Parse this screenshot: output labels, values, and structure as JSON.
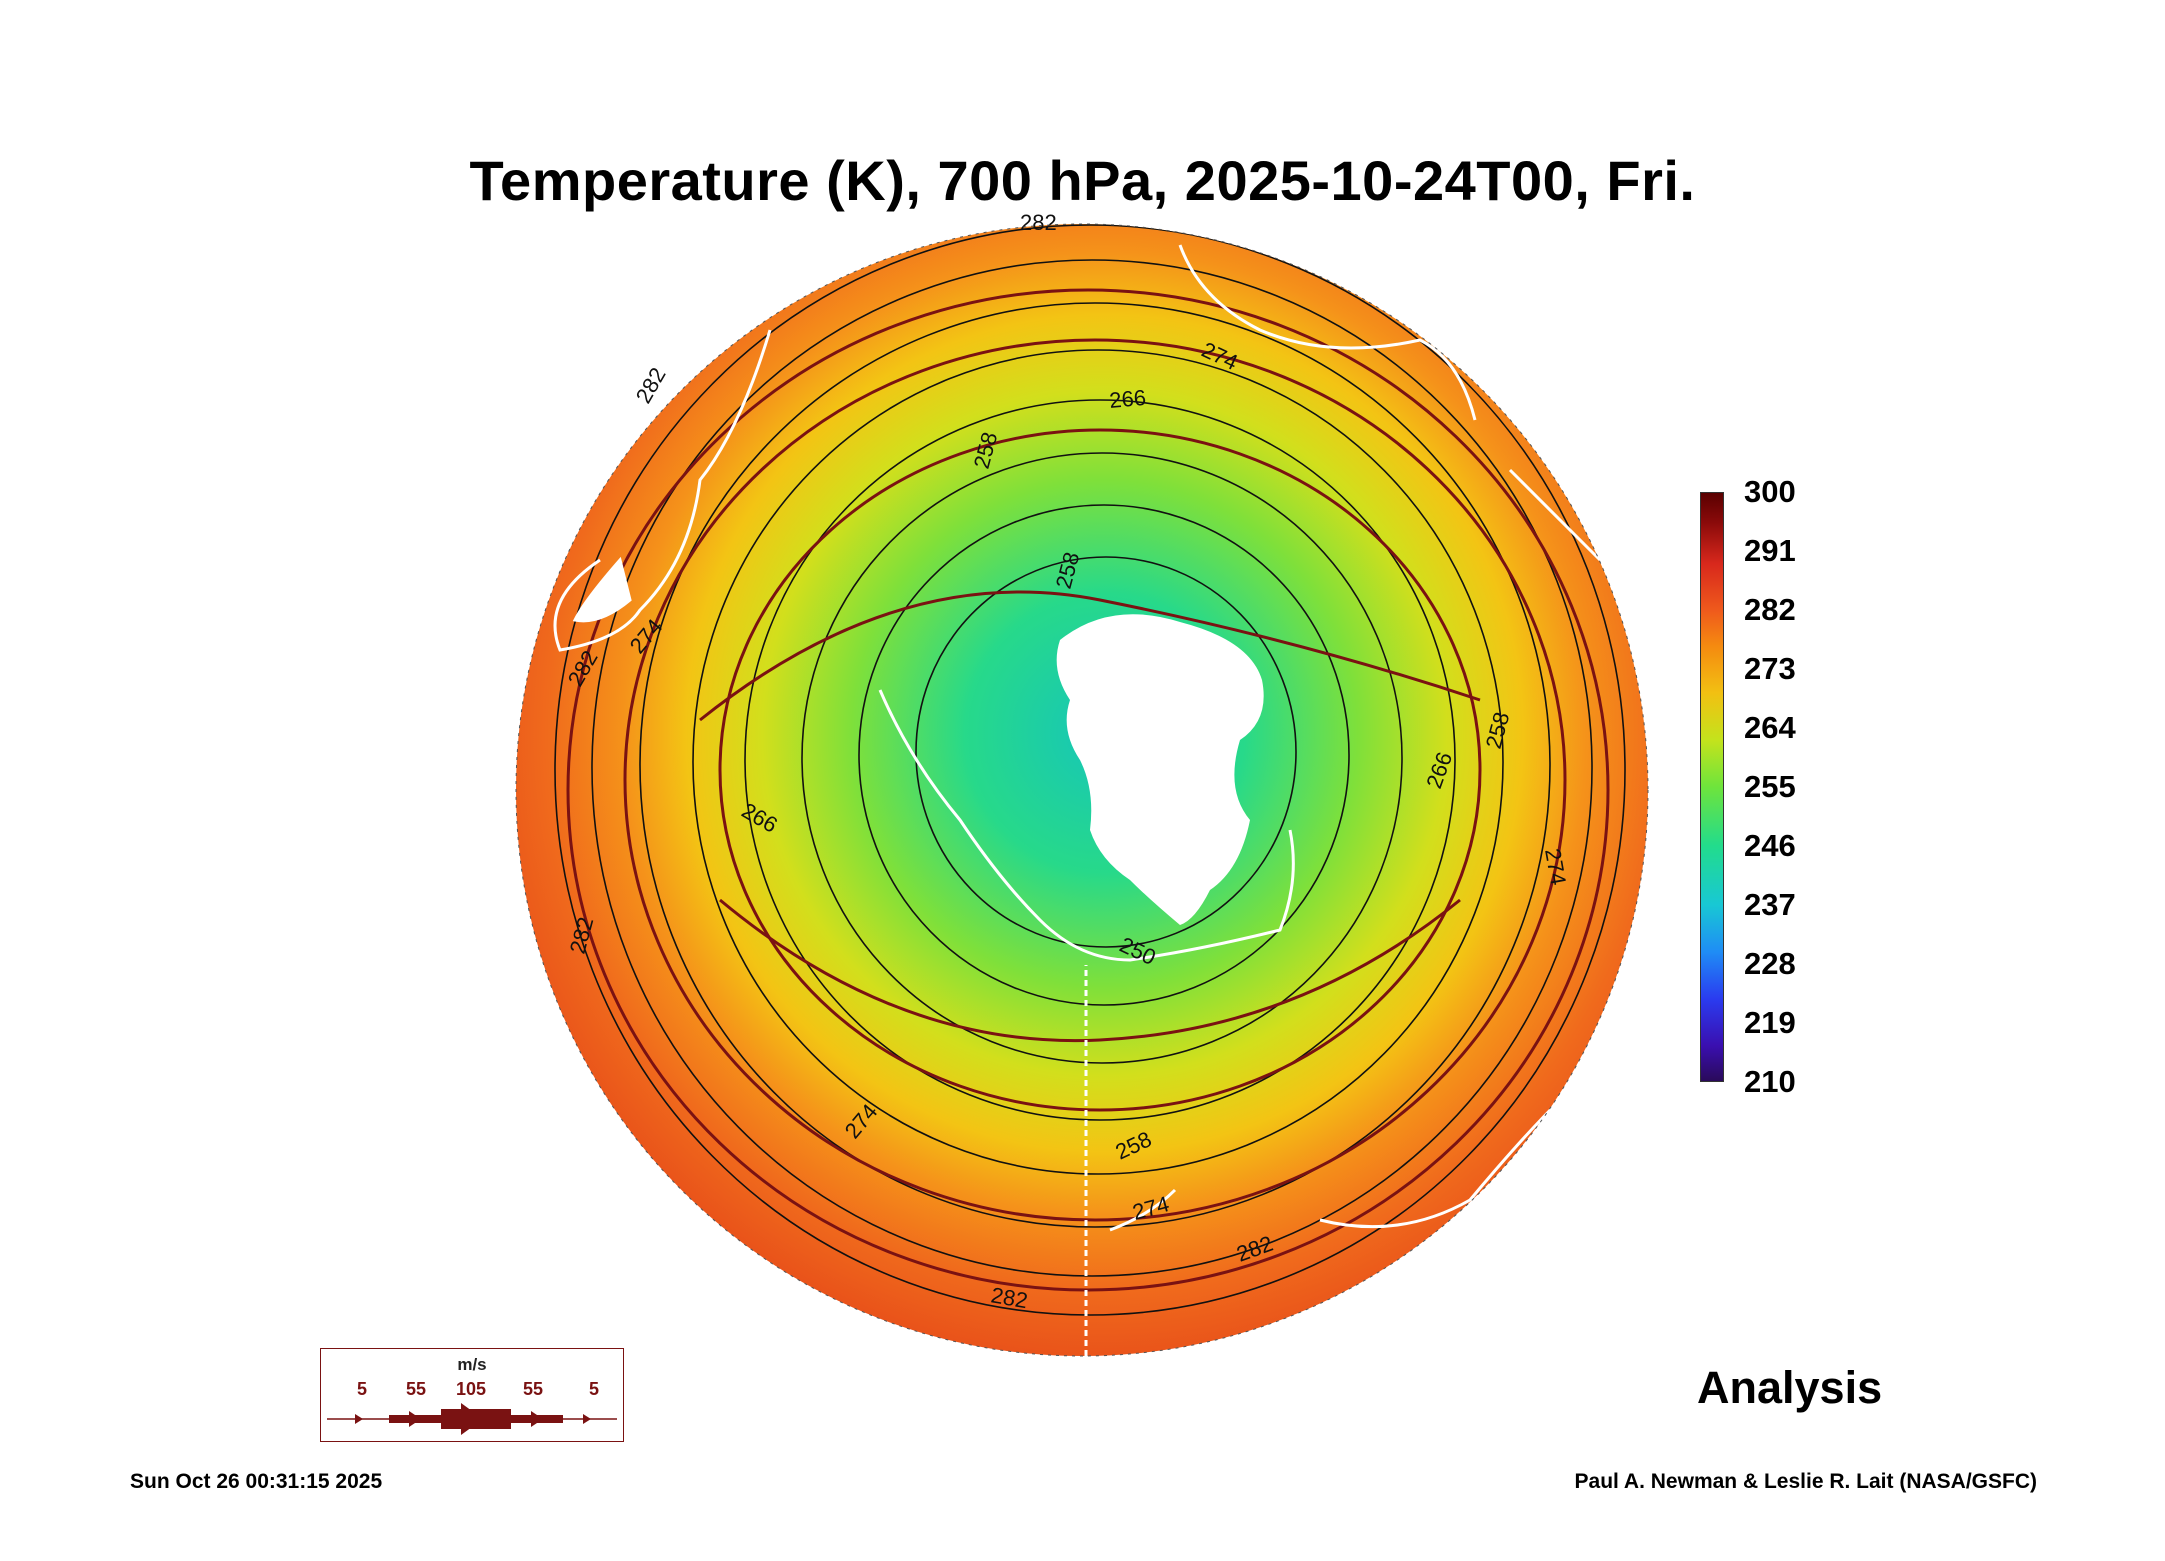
{
  "title": "Temperature (K), 700 hPa, 2025-10-24T00, Fri.",
  "colorbar": {
    "labels": [
      "300",
      "291",
      "282",
      "273",
      "264",
      "255",
      "246",
      "237",
      "228",
      "219",
      "210"
    ],
    "min": 210,
    "max": 300
  },
  "contour_labels": [
    "282",
    "282",
    "282",
    "282",
    "282",
    "282",
    "274",
    "274",
    "274",
    "274",
    "274",
    "266",
    "266",
    "266",
    "258",
    "258",
    "258",
    "258",
    "250"
  ],
  "product": "Analysis",
  "legend": {
    "unit": "m/s",
    "values": [
      "5",
      "55",
      "105",
      "55",
      "5"
    ]
  },
  "footer": {
    "timestamp": "Sun Oct 26 00:31:15 2025",
    "credit": "Paul A. Newman & Leslie R. Lait (NASA/GSFC)"
  },
  "colors": {
    "contour": "#111111",
    "streamline": "#7a1212",
    "coastline": "#ffffff"
  }
}
